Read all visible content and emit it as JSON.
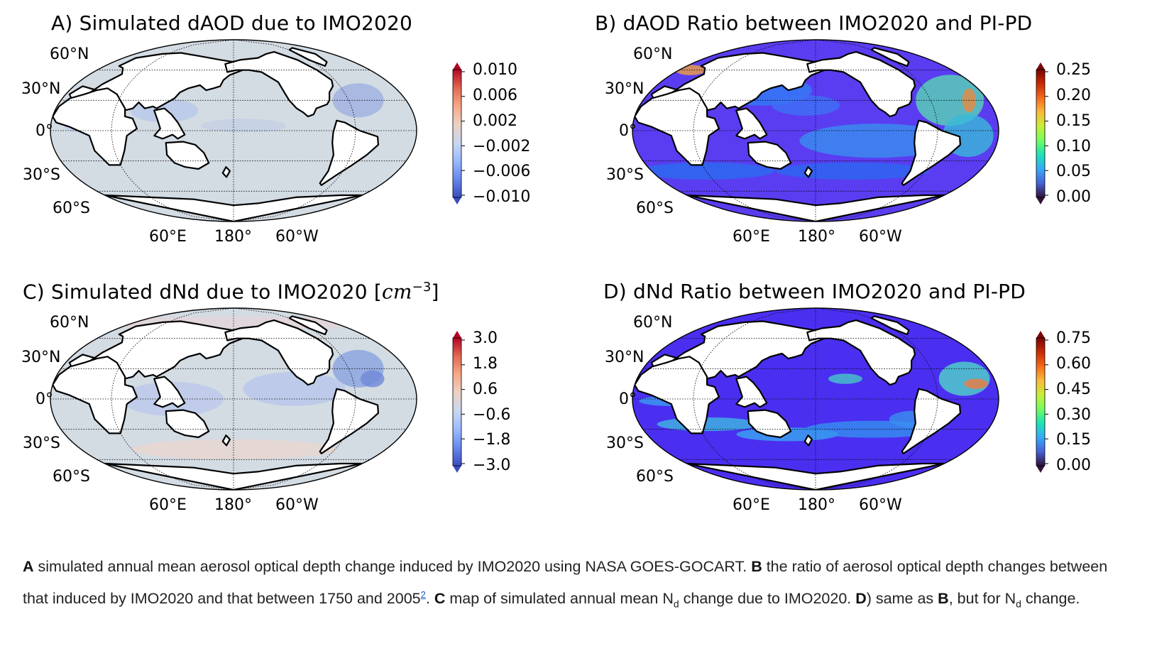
{
  "panels": [
    {
      "id": "A",
      "title": "A) Simulated dAOD due to IMO2020",
      "colormap": "diverging-blue-red",
      "base_color": "#d3dbe3",
      "lat_labels": [
        "60°N",
        "30°N",
        "0°",
        "30°S",
        "60°S"
      ],
      "lon_labels": [
        "60°E",
        "180°",
        "60°W"
      ],
      "colorbar_ticks": [
        "0.010",
        "0.006",
        "0.002",
        "−0.002",
        "−0.006",
        "−0.010"
      ]
    },
    {
      "id": "B",
      "title": "B) dAOD Ratio between IMO2020 and PI-PD",
      "colormap": "rainbow",
      "base_color": "#5a3df0",
      "lat_labels": [
        "60°N",
        "30°N",
        "0°",
        "30°S",
        "60°S"
      ],
      "lon_labels": [
        "60°E",
        "180°",
        "60°W"
      ],
      "colorbar_ticks": [
        "0.25",
        "0.20",
        "0.15",
        "0.10",
        "0.05",
        "0.00"
      ]
    },
    {
      "id": "C",
      "title_main": "C) Simulated dNd due to IMO2020 [",
      "title_unit": "cm",
      "title_exp": "−3",
      "title_end": "]",
      "colormap": "diverging-blue-red",
      "base_color": "#d3dbe3",
      "lat_labels": [
        "60°N",
        "30°N",
        "0°",
        "30°S",
        "60°S"
      ],
      "lon_labels": [
        "60°E",
        "180°",
        "60°W"
      ],
      "colorbar_ticks": [
        "3.0",
        "1.8",
        "0.6",
        "−0.6",
        "−1.8",
        "−3.0"
      ]
    },
    {
      "id": "D",
      "title": "D) dNd Ratio between IMO2020 and PI-PD",
      "colormap": "rainbow",
      "base_color": "#4a2ff0",
      "lat_labels": [
        "60°N",
        "30°N",
        "0°",
        "30°S",
        "60°S"
      ],
      "lon_labels": [
        "60°E",
        "180°",
        "60°W"
      ],
      "colorbar_ticks": [
        "0.75",
        "0.60",
        "0.45",
        "0.30",
        "0.15",
        "0.00"
      ]
    }
  ],
  "caption": {
    "a_letter": "A",
    "a_text": " simulated annual mean aerosol optical depth change induced by IMO2020 using NASA GOES-GOCART. ",
    "b_letter": "B",
    "b_text": " the ratio of aerosol optical depth changes between that induced by IMO2020 and that between 1750 and 2005",
    "footnote": "2",
    "after_footnote": ". ",
    "c_letter": "C",
    "c_text": " map of simulated annual mean N",
    "c_sub": "d",
    "c_text2": " change due to IMO2020. ",
    "d_letter": "D",
    "d_text": ") same as ",
    "d_b": "B",
    "d_text2": ", but for N",
    "d_sub": "d",
    "d_text3": " change."
  }
}
